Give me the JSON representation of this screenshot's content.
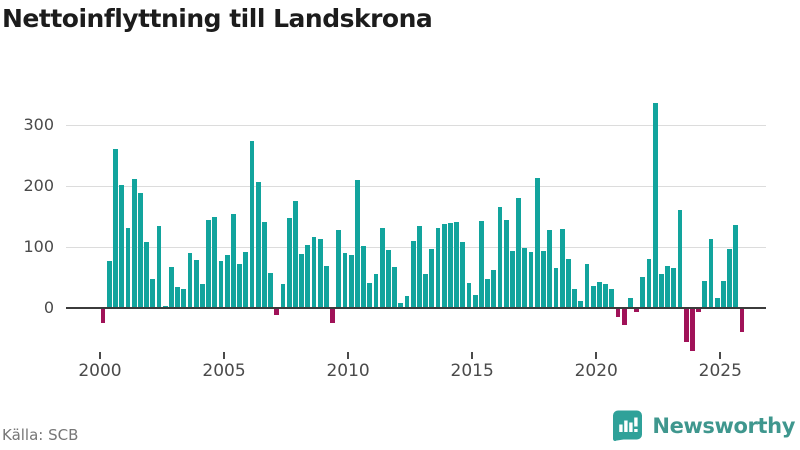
{
  "title": "Nettoinflyttning till Landskrona",
  "source": "Källa: SCB",
  "logo": {
    "text": "Newsworthy",
    "icon": "newsworthy-bubble-chart-icon"
  },
  "colors": {
    "positive": "#12a49d",
    "negative": "#a01258",
    "grid": "#dcdcdc",
    "zero_line": "#3b3b3b",
    "axis_text": "#4a4a4a",
    "title_text": "#1c1c1c",
    "source_text": "#767676",
    "logo_teal": "#2fa199"
  },
  "chart_data": {
    "type": "bar",
    "title": "Nettoinflyttning till Landskrona",
    "xlabel": "",
    "ylabel": "",
    "frequency": "quarterly",
    "x_start": "2000 Q1",
    "x_end": "2025 Q4",
    "y_ticks": [
      0,
      100,
      200,
      300
    ],
    "x_ticks": [
      2000,
      2005,
      2010,
      2015,
      2020,
      2025
    ],
    "ylim": [
      -80,
      350
    ],
    "grid": true,
    "legend": "none",
    "values": [
      -26,
      76,
      260,
      201,
      130,
      210,
      187,
      108,
      46,
      133,
      3,
      67,
      33,
      31,
      90,
      78,
      38,
      143,
      148,
      77,
      86,
      153,
      71,
      91,
      273,
      205,
      140,
      56,
      -12,
      38,
      146,
      175,
      87,
      102,
      116,
      113,
      68,
      -25,
      127,
      89,
      86,
      209,
      101,
      40,
      55,
      131,
      95,
      66,
      8,
      19,
      109,
      133,
      55,
      96,
      131,
      137,
      139,
      140,
      107,
      40,
      20,
      142,
      46,
      61,
      165,
      143,
      92,
      179,
      98,
      91,
      213,
      92,
      127,
      65,
      128,
      79,
      30,
      10,
      72,
      36,
      42,
      39,
      30,
      -15,
      -29,
      16,
      -8,
      50,
      79,
      336,
      55,
      68,
      64,
      160,
      -56,
      -71,
      -7,
      44,
      113,
      15,
      44,
      96,
      136,
      -40
    ]
  }
}
